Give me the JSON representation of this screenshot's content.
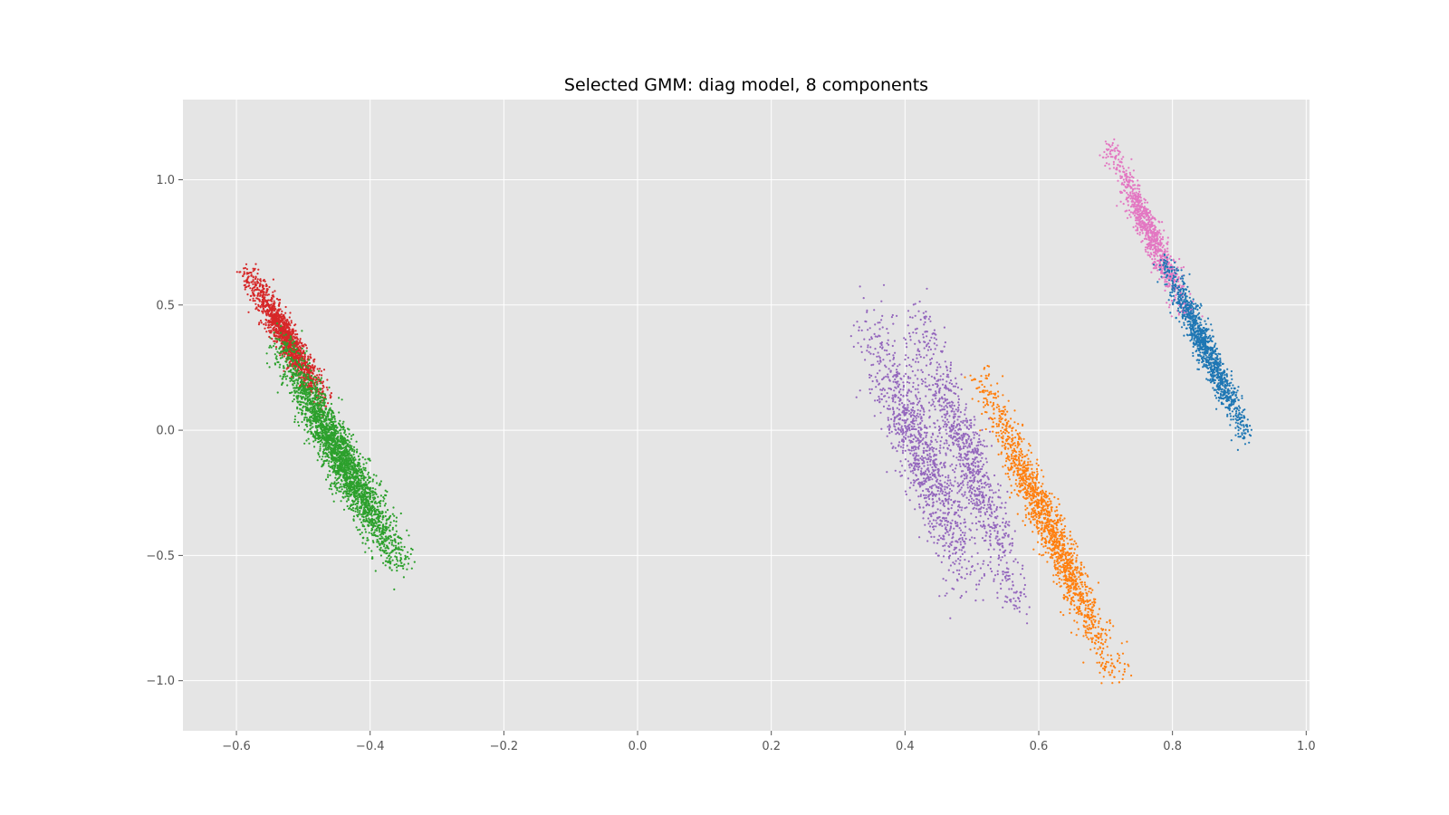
{
  "chart_data": {
    "type": "scatter",
    "title": "Selected GMM: diag model, 8 components",
    "xlabel": "",
    "ylabel": "",
    "xlim": [
      -0.68,
      1.005
    ],
    "ylim": [
      -1.2,
      1.32
    ],
    "xticks": [
      -0.6,
      -0.4,
      -0.2,
      0.0,
      0.2,
      0.4,
      0.6,
      0.8,
      1.0
    ],
    "xtick_labels": [
      "−0.6",
      "−0.4",
      "−0.2",
      "0.0",
      "0.2",
      "0.4",
      "0.6",
      "0.8",
      "1.0"
    ],
    "yticks": [
      1.0,
      0.5,
      0.0,
      -0.5,
      -1.0
    ],
    "ytick_labels": [
      "1.0",
      "0.5",
      "0.0",
      "−0.5",
      "−1.0"
    ],
    "grid": true,
    "background": "#e5e5e5",
    "series": [
      {
        "color": "#d62728",
        "n": 1400,
        "x_range": [
          -0.58,
          -0.47
        ],
        "y_start": 0.62,
        "y_end": 0.12,
        "spread": 0.008
      },
      {
        "color": "#2ca02c",
        "n": 2600,
        "x_range": [
          -0.53,
          -0.36
        ],
        "y_start": 0.32,
        "y_end": -0.52,
        "spread": 0.012
      },
      {
        "color": "#9467bd",
        "n": 1100,
        "x_range": [
          0.35,
          0.5
        ],
        "y_start": 0.42,
        "y_end": -0.62,
        "spread": 0.017
      },
      {
        "color": "#9467bd",
        "n": 900,
        "x_range": [
          0.42,
          0.57
        ],
        "y_start": 0.44,
        "y_end": -0.68,
        "spread": 0.014
      },
      {
        "color": "#ff7f0e",
        "n": 1500,
        "x_range": [
          0.52,
          0.71
        ],
        "y_start": 0.18,
        "y_end": -0.95,
        "spread": 0.011
      },
      {
        "color": "#e377c2",
        "n": 900,
        "x_range": [
          0.71,
          0.82
        ],
        "y_start": 1.12,
        "y_end": 0.47,
        "spread": 0.008
      },
      {
        "color": "#1f77b4",
        "n": 1100,
        "x_range": [
          0.79,
          0.91
        ],
        "y_start": 0.66,
        "y_end": -0.01,
        "spread": 0.008
      }
    ]
  }
}
